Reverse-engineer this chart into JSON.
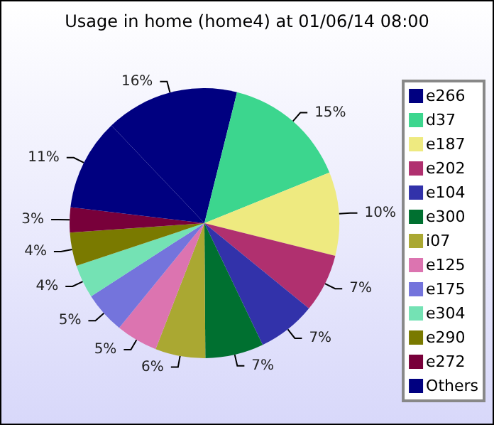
{
  "chart_data": {
    "type": "pie",
    "title": "Usage in home (home4) at 01/06/14 08:00",
    "categories": [
      "e266",
      "d37",
      "e187",
      "e202",
      "e104",
      "e300",
      "i07",
      "e125",
      "e175",
      "e304",
      "e290",
      "e272",
      "Others"
    ],
    "values": [
      16,
      15,
      10,
      7,
      7,
      7,
      6,
      5,
      5,
      4,
      4,
      3,
      11
    ],
    "colors": [
      "#000080",
      "#3cd68e",
      "#eeea80",
      "#b0306f",
      "#3232aa",
      "#007030",
      "#aaa832",
      "#dc74b0",
      "#7474dc",
      "#74e2b4",
      "#7a7a00",
      "#78003a",
      "#000080"
    ],
    "value_labels": [
      "16%",
      "15%",
      "10%",
      "7%",
      "7%",
      "7%",
      "6%",
      "5%",
      "5%",
      "4%",
      "4%",
      "3%",
      "11%"
    ],
    "legend": "right"
  }
}
